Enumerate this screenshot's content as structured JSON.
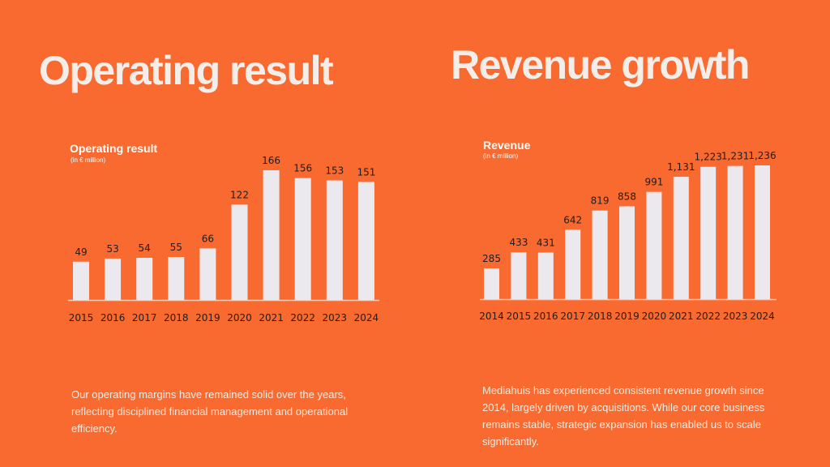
{
  "panels": {
    "left_title": "Operating result",
    "right_title": "Revenue growth"
  },
  "colors": {
    "background": "#f86a30",
    "bar": "#ece9ee",
    "axis": "#f3cdb8",
    "label_text": "#1e1e1e"
  },
  "chart_data": [
    {
      "type": "bar",
      "title": "Operating result",
      "subtitle": "(in € million)",
      "categories": [
        "2015",
        "2016",
        "2017",
        "2018",
        "2019",
        "2020",
        "2021",
        "2022",
        "2023",
        "2024"
      ],
      "values": [
        49,
        53,
        54,
        55,
        66,
        122,
        166,
        156,
        153,
        151
      ],
      "value_labels": [
        "49",
        "53",
        "54",
        "55",
        "66",
        "122",
        "166",
        "156",
        "153",
        "151"
      ],
      "xlabel": "",
      "ylabel": "",
      "ylim": [
        0,
        166
      ],
      "grid": false
    },
    {
      "type": "bar",
      "title": "Revenue",
      "subtitle": "(in € million)",
      "categories": [
        "2014",
        "2015",
        "2016",
        "2017",
        "2018",
        "2019",
        "2020",
        "2021",
        "2022",
        "2023",
        "2024"
      ],
      "values": [
        285,
        433,
        431,
        642,
        819,
        858,
        991,
        1131,
        1223,
        1231,
        1236
      ],
      "value_labels": [
        "285",
        "433",
        "431",
        "642",
        "819",
        "858",
        "991",
        "1,131",
        "1,223",
        "1,231",
        "1,236"
      ],
      "xlabel": "",
      "ylabel": "",
      "ylim": [
        0,
        1236
      ],
      "grid": false
    }
  ],
  "descriptions": {
    "left": "Our operating margins have remained solid over the years, reflecting disciplined financial management and operational efficiency.",
    "right": "Mediahuis has experienced consistent revenue growth since 2014, largely driven by acquisitions. While our core business remains stable, strategic expansion has enabled us to scale significantly."
  }
}
